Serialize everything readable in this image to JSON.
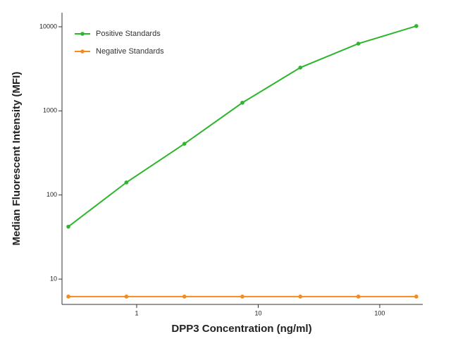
{
  "chart_data": {
    "type": "line",
    "x_label": "DPP3 Concentration (ng/ml)",
    "y_label": "Median  Fluorescent Intensity  (MFI)",
    "x": [
      0.274,
      0.823,
      2.47,
      7.41,
      22.2,
      66.7,
      200
    ],
    "series": [
      {
        "name": "Positive Standards",
        "color": "#2db52d",
        "values": [
          42,
          141,
          406,
          1250,
          3270,
          6300,
          10200
        ]
      },
      {
        "name": "Negative Standards",
        "color": "#f58a1f",
        "values": [
          6.2,
          6.2,
          6.2,
          6.2,
          6.2,
          6.2,
          6.2
        ]
      }
    ],
    "xlim": [
      0.243,
      226
    ],
    "ylim": [
      5,
      14700
    ],
    "xticks": [
      1,
      10,
      100
    ],
    "yticks": [
      10,
      100,
      1000,
      10000
    ],
    "log_x": true,
    "log_y": true,
    "legend": "top-left"
  }
}
